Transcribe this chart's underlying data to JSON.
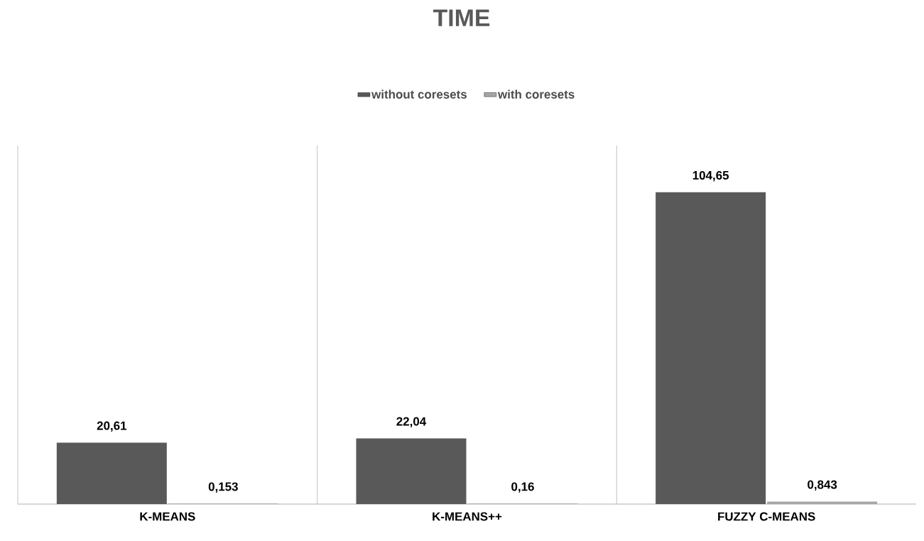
{
  "chart_data": {
    "type": "bar",
    "title": "TIME",
    "categories": [
      "K-MEANS",
      "K-MEANS++",
      "FUZZY C-MEANS"
    ],
    "series": [
      {
        "name": "without coresets",
        "color": "#595959",
        "values": [
          20.61,
          22.04,
          104.65
        ],
        "value_labels": [
          "20,61",
          "22,04",
          "104,65"
        ]
      },
      {
        "name": "with coresets",
        "color": "#a6a6a6",
        "values": [
          0.153,
          0.16,
          0.843
        ],
        "value_labels": [
          "0,153",
          "0,16",
          "0,843"
        ]
      }
    ],
    "grid": "x",
    "legend": "top"
  }
}
